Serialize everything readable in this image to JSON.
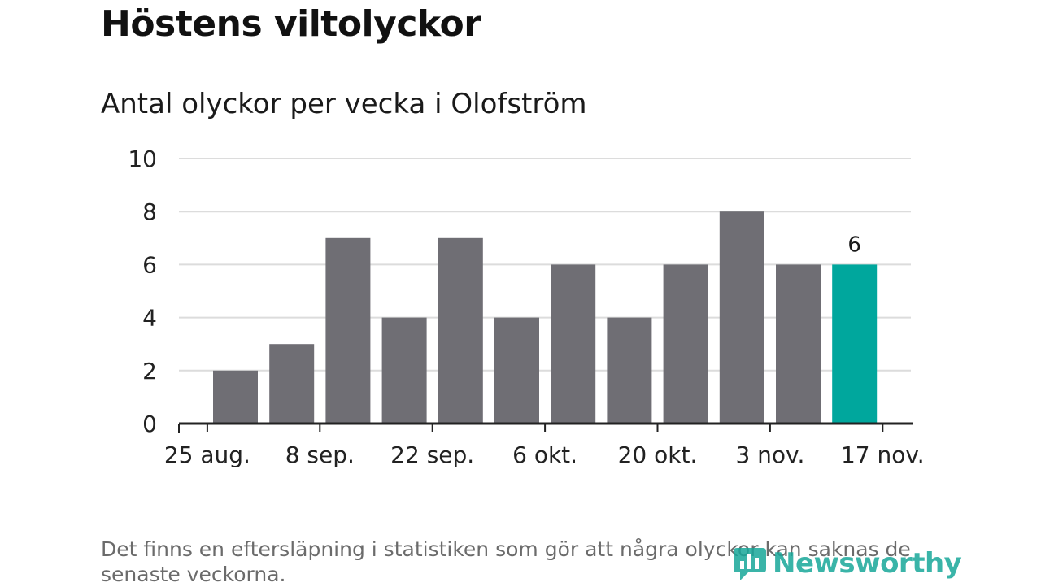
{
  "header": {
    "title": "Höstens viltolyckor",
    "subtitle": "Antal olyckor per vecka i Olofström"
  },
  "footnote": "Det finns en eftersläpning i statistiken som gör att några olyckor kan saknas de senaste veckorna.",
  "brand": {
    "name": "Newsworthy",
    "icon": "newsworthy-logo-icon"
  },
  "colors": {
    "bar": "#6f6e74",
    "highlight": "#00a79d",
    "grid": "#dcdcdc",
    "axis": "#222222"
  },
  "chart_data": {
    "type": "bar",
    "ylim": [
      0,
      10
    ],
    "yticks": [
      0,
      2,
      4,
      6,
      8,
      10
    ],
    "values": [
      2,
      3,
      7,
      4,
      7,
      4,
      6,
      4,
      6,
      8,
      6,
      6
    ],
    "highlight_index": 11,
    "data_label": "6",
    "xtick_labels": [
      "25 aug.",
      "8 sep.",
      "22 sep.",
      "6 okt.",
      "20 okt.",
      "3 nov.",
      "17 nov."
    ],
    "grid": true
  }
}
